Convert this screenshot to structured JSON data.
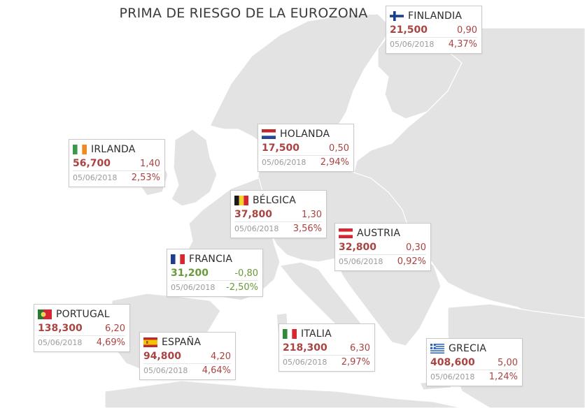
{
  "title": "PRIMA DE RIESGO DE LA EUROZONA",
  "colors": {
    "up": "#a94442",
    "down": "#6a9a3a",
    "land": "#e3e3e3",
    "border": "#ffffff"
  },
  "countries": [
    {
      "key": "finlandia",
      "name": "FINLANDIA",
      "value": "21,500",
      "change": "0,90",
      "date": "05/06/2018",
      "percent": "4,37%",
      "direction": "up",
      "flag": "finland-flag"
    },
    {
      "key": "holanda",
      "name": "HOLANDA",
      "value": "17,500",
      "change": "0,50",
      "date": "05/06/2018",
      "percent": "2,94%",
      "direction": "up",
      "flag": "netherlands-flag"
    },
    {
      "key": "irlanda",
      "name": "IRLANDA",
      "value": "56,700",
      "change": "1,40",
      "date": "05/06/2018",
      "percent": "2,53%",
      "direction": "up",
      "flag": "ireland-flag"
    },
    {
      "key": "belgica",
      "name": "BÉLGICA",
      "value": "37,800",
      "change": "1,30",
      "date": "05/06/2018",
      "percent": "3,56%",
      "direction": "up",
      "flag": "belgium-flag"
    },
    {
      "key": "austria",
      "name": "AUSTRIA",
      "value": "32,800",
      "change": "0,30",
      "date": "05/06/2018",
      "percent": "0,92%",
      "direction": "up",
      "flag": "austria-flag"
    },
    {
      "key": "francia",
      "name": "FRANCIA",
      "value": "31,200",
      "change": "-0,80",
      "date": "05/06/2018",
      "percent": "-2,50%",
      "direction": "down",
      "flag": "france-flag"
    },
    {
      "key": "portugal",
      "name": "PORTUGAL",
      "value": "138,300",
      "change": "6,20",
      "date": "05/06/2018",
      "percent": "4,69%",
      "direction": "up",
      "flag": "portugal-flag"
    },
    {
      "key": "espana",
      "name": "ESPAÑA",
      "value": "94,800",
      "change": "4,20",
      "date": "05/06/2018",
      "percent": "4,64%",
      "direction": "up",
      "flag": "spain-flag"
    },
    {
      "key": "italia",
      "name": "ITALIA",
      "value": "218,300",
      "change": "6,30",
      "date": "05/06/2018",
      "percent": "2,97%",
      "direction": "up",
      "flag": "italy-flag"
    },
    {
      "key": "grecia",
      "name": "GRECIA",
      "value": "408,600",
      "change": "5,00",
      "date": "05/06/2018",
      "percent": "1,24%",
      "direction": "up",
      "flag": "greece-flag"
    }
  ]
}
